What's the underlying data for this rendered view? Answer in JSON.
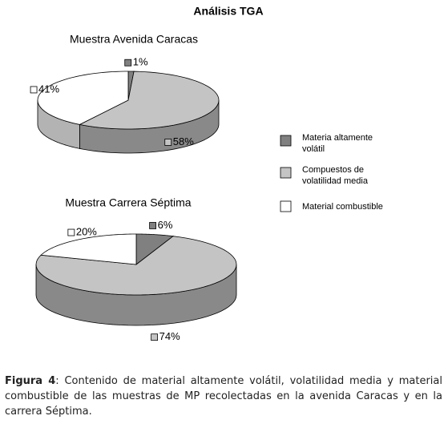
{
  "title": "Análisis TGA",
  "chart_data": [
    {
      "type": "pie",
      "title": "Muestra Avenida Caracas",
      "categories": [
        "Materia altamente volátil",
        "Compuestos de volatilidad media",
        "Material combustible"
      ],
      "values": [
        1,
        58,
        41
      ],
      "value_labels": [
        "1%",
        "58%",
        "41%"
      ],
      "colors": [
        "#808080",
        "#c4c4c4",
        "#ffffff"
      ]
    },
    {
      "type": "pie",
      "title": "Muestra Carrera Séptima",
      "values": [
        6,
        74,
        20
      ],
      "value_labels": [
        "6%",
        "74%",
        "20%"
      ],
      "colors": [
        "#808080",
        "#c4c4c4",
        "#ffffff"
      ]
    }
  ],
  "caption": {
    "label": "Figura 4",
    "text": ": Contenido de material altamente volátil, volatilidad media y material combustible de las muestras de MP recolectadas en la avenida Caracas y en la carrera Séptima."
  }
}
